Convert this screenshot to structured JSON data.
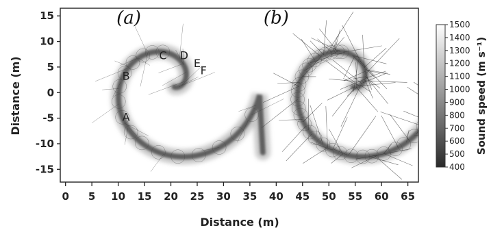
{
  "chart_data": {
    "type": "scatter",
    "title": "",
    "xlabel": "Distance (m)",
    "ylabel": "Distance (m)",
    "xlim": [
      -1,
      67
    ],
    "ylim": [
      -17.5,
      16.5
    ],
    "xticks": [
      0,
      5,
      10,
      15,
      20,
      25,
      30,
      35,
      40,
      45,
      50,
      55,
      60,
      65
    ],
    "yticks": [
      -15,
      -10,
      -5,
      0,
      5,
      10,
      15
    ],
    "panels": [
      {
        "label": "(a)",
        "x": 12,
        "y": 13.5,
        "center": [
          20,
          1.5
        ],
        "theta_start": -0.3,
        "theta_end": 1.85
      },
      {
        "label": "(b)",
        "x": 40,
        "y": 13.5,
        "center": [
          54,
          1.5
        ],
        "theta_start": -0.3,
        "theta_end": 1.85
      }
    ],
    "annotations": [
      {
        "text": "A",
        "x": 11.5,
        "y": -5.5
      },
      {
        "text": "B",
        "x": 11.5,
        "y": 2.5
      },
      {
        "text": "C",
        "x": 18.5,
        "y": 6.5
      },
      {
        "text": "D",
        "x": 22.5,
        "y": 6.5
      },
      {
        "text": "E",
        "x": 25.0,
        "y": 5.0
      },
      {
        "text": "F",
        "x": 26.2,
        "y": 3.6
      }
    ],
    "colorbar": {
      "label": "Sound speed (m s⁻¹)",
      "min": 400,
      "max": 1500,
      "ticks": [
        1500,
        1400,
        1300,
        1200,
        1100,
        1000,
        900,
        800,
        700,
        600,
        500,
        400
      ]
    }
  }
}
